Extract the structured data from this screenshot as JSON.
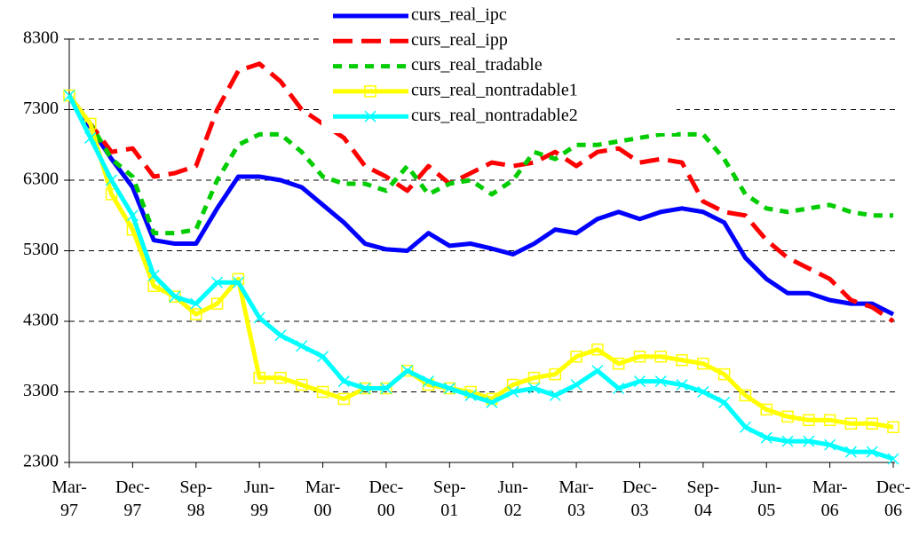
{
  "chart_data": {
    "type": "line",
    "categories": [
      "Mar-97",
      null,
      null,
      "Dec-97",
      null,
      null,
      "Sep-98",
      null,
      null,
      "Jun-99",
      null,
      null,
      "Mar-00",
      null,
      null,
      "Dec-00",
      null,
      null,
      "Sep-01",
      null,
      null,
      "Jun-02",
      null,
      null,
      "Mar-03",
      null,
      null,
      "Dec-03",
      null,
      null,
      "Sep-04",
      null,
      null,
      "Jun-05",
      null,
      null,
      "Mar-06",
      null,
      null,
      "Dec-06"
    ],
    "series": [
      {
        "name": "curs_real_ipc",
        "color": "#0000ff",
        "line_style": "solid",
        "marker": "none",
        "values": [
          7500,
          7050,
          6600,
          6200,
          5450,
          5400,
          5400,
          5900,
          6350,
          6350,
          6300,
          6200,
          5950,
          5700,
          5400,
          5320,
          5300,
          5550,
          5370,
          5400,
          5330,
          5250,
          5400,
          5600,
          5550,
          5750,
          5850,
          5750,
          5850,
          5900,
          5850,
          5700,
          5200,
          4900,
          4700,
          4700,
          4600,
          4550,
          4550,
          4400
        ]
      },
      {
        "name": "curs_real_ipp",
        "color": "#ff0000",
        "line_style": "long-dash",
        "marker": "none",
        "values": [
          7500,
          7100,
          6700,
          6750,
          6350,
          6400,
          6500,
          7300,
          7850,
          7950,
          7700,
          7300,
          7100,
          6900,
          6500,
          6350,
          6150,
          6500,
          6250,
          6400,
          6550,
          6500,
          6550,
          6700,
          6500,
          6700,
          6750,
          6550,
          6600,
          6550,
          6000,
          5850,
          5800,
          5450,
          5200,
          5050,
          4900,
          4600,
          4500,
          4300
        ]
      },
      {
        "name": "curs_real_tradable",
        "color": "#00cc00",
        "line_style": "short-dash",
        "marker": "none",
        "values": [
          7500,
          7100,
          6600,
          6350,
          5550,
          5550,
          5600,
          6300,
          6800,
          6950,
          6950,
          6700,
          6350,
          6250,
          6250,
          6150,
          6500,
          6100,
          6250,
          6300,
          6100,
          6300,
          6700,
          6600,
          6800,
          6800,
          6850,
          6900,
          6950,
          6950,
          6950,
          6600,
          6100,
          5900,
          5850,
          5900,
          5950,
          5850,
          5800,
          5800
        ]
      },
      {
        "name": "curs_real_nontradable1",
        "color": "#ffff00",
        "line_style": "solid",
        "marker": "square",
        "values": [
          7500,
          7100,
          6100,
          5600,
          4800,
          4650,
          4400,
          4550,
          4900,
          3500,
          3500,
          3400,
          3300,
          3200,
          3350,
          3350,
          3600,
          3400,
          3350,
          3300,
          3200,
          3400,
          3500,
          3550,
          3800,
          3900,
          3700,
          3800,
          3800,
          3750,
          3700,
          3550,
          3250,
          3050,
          2950,
          2900,
          2900,
          2850,
          2850,
          2800
        ]
      },
      {
        "name": "curs_real_nontradable2",
        "color": "#00ffff",
        "line_style": "solid",
        "marker": "x",
        "values": [
          7500,
          6900,
          6300,
          5800,
          4950,
          4650,
          4550,
          4850,
          4850,
          4350,
          4100,
          3950,
          3800,
          3450,
          3350,
          3350,
          3600,
          3450,
          3350,
          3250,
          3150,
          3300,
          3350,
          3250,
          3400,
          3600,
          3350,
          3450,
          3450,
          3400,
          3300,
          3150,
          2800,
          2650,
          2600,
          2600,
          2550,
          2450,
          2450,
          2350
        ]
      }
    ],
    "ylim": [
      2300,
      8300
    ],
    "yticks": [
      2300,
      3300,
      4300,
      5300,
      6300,
      7300,
      8300
    ],
    "grid": true,
    "legend": "top"
  }
}
